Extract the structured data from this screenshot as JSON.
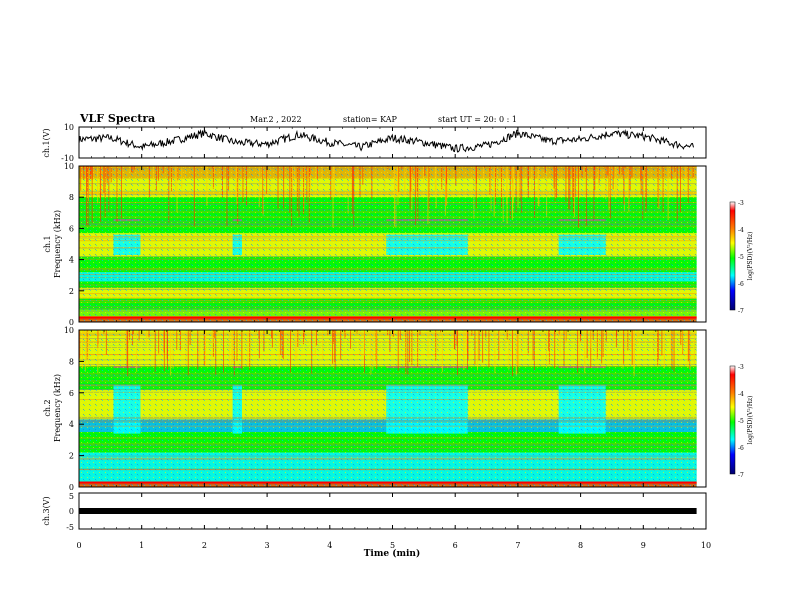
{
  "header": {
    "title": "VLF Spectra",
    "date": "Mar.2 , 2022",
    "station": "station= KAP",
    "start": "start UT = 20: 0 : 1"
  },
  "colors": {
    "waveform": "#000000",
    "spectrogram_base": "#22cc33",
    "colormap": [
      "#00007f",
      "#0000ff",
      "#00bfff",
      "#00ffff",
      "#00ff00",
      "#7fff00",
      "#ffff00",
      "#ffb000",
      "#ff4000",
      "#ff0000",
      "#ffffff"
    ]
  },
  "chart_data": [
    {
      "type": "line",
      "panel": "ch1-waveform",
      "ylabel": "ch.1(V)",
      "ylim": [
        -10,
        10
      ],
      "yticks": [
        "10",
        "-10"
      ],
      "xlim": [
        0,
        10
      ],
      "series": [
        {
          "x": [
            0,
            0.5,
            1,
            1.5,
            2,
            2.5,
            3,
            3.5,
            4,
            4.5,
            5,
            5.5,
            6,
            6.5,
            7,
            7.5,
            8,
            8.5,
            9,
            9.5,
            9.8
          ],
          "y": [
            2,
            3,
            -3,
            1,
            6,
            0,
            -1,
            5,
            0,
            -3,
            3,
            0,
            -4,
            -2,
            6,
            1,
            2,
            6,
            4,
            -1,
            -3
          ]
        }
      ]
    },
    {
      "type": "heatmap",
      "panel": "ch1-spectrogram",
      "ylabel": "ch.1",
      "ylabel2": "Frequency (kHz)",
      "ylim": [
        0,
        10
      ],
      "yticks": [
        "0",
        "2",
        "4",
        "6",
        "8",
        "10"
      ],
      "xlim": [
        0,
        9.85
      ],
      "colorbar": {
        "label": "log(PSD)(V²/Hz)",
        "range": [
          -7,
          -3
        ],
        "ticks": [
          "-3",
          "-4",
          "-5",
          "-6",
          "-7"
        ]
      },
      "time_segments": [
        0,
        0.55,
        0.98,
        2.45,
        2.6,
        4.9,
        6.2,
        7.65,
        8.4,
        9.85
      ]
    },
    {
      "type": "heatmap",
      "panel": "ch2-spectrogram",
      "ylabel": "ch.2",
      "ylabel2": "Frequency (kHz)",
      "ylim": [
        0,
        10
      ],
      "yticks": [
        "0",
        "2",
        "4",
        "6",
        "8",
        "10"
      ],
      "xlim": [
        0,
        9.85
      ],
      "colorbar": {
        "label": "log(PSD)(V²/Hz)",
        "range": [
          -7,
          -3
        ],
        "ticks": [
          "-3",
          "-4",
          "-5",
          "-6",
          "-7"
        ]
      },
      "time_segments": [
        0,
        0.55,
        0.98,
        2.45,
        2.6,
        4.9,
        6.2,
        7.65,
        8.4,
        9.85
      ]
    },
    {
      "type": "line",
      "panel": "ch3-signal",
      "ylabel": "ch.3(V)",
      "ylim": [
        -5,
        5
      ],
      "yticks": [
        "5",
        "0",
        "-5"
      ],
      "xlim": [
        0,
        10
      ],
      "xlabel": "Time (min)",
      "xticks": [
        "0",
        "1",
        "2",
        "3",
        "4",
        "5",
        "6",
        "7",
        "8",
        "9",
        "10"
      ],
      "series": [
        {
          "x": [
            0,
            9.85
          ],
          "y": [
            0,
            0
          ]
        }
      ]
    }
  ]
}
